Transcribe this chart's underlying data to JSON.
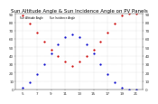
{
  "title": "Sun Altitude Angle & Sun Incidence Angle on PV Panels",
  "xlabel": "",
  "ylabel": "",
  "background_color": "#ffffff",
  "plot_bg_color": "#ffffff",
  "grid_color": "#aaaaaa",
  "blue_color": "#0000cc",
  "red_color": "#cc0000",
  "ylim": [
    0,
    90
  ],
  "xlim": [
    4,
    22
  ],
  "xticks": [
    5,
    7,
    9,
    11,
    13,
    15,
    17,
    19,
    21
  ],
  "yticks_left": [
    0,
    10,
    20,
    30,
    40,
    50,
    60,
    70,
    80,
    90
  ],
  "yticks_right": [
    0,
    10,
    20,
    30,
    40,
    50,
    60,
    70,
    80,
    90
  ],
  "hours": [
    5,
    6,
    7,
    8,
    9,
    10,
    11,
    12,
    13,
    14,
    15,
    16,
    17,
    18,
    19,
    20,
    21
  ],
  "sun_altitude": [
    2,
    8,
    18,
    30,
    43,
    54,
    62,
    65,
    62,
    54,
    43,
    30,
    18,
    8,
    2,
    0,
    0
  ],
  "sun_incidence": [
    88,
    78,
    68,
    57,
    47,
    40,
    33,
    28,
    33,
    40,
    47,
    57,
    68,
    78,
    88,
    90,
    90
  ],
  "legend_blue": "Sun Altitude Angle",
  "legend_red": "Sun Incidence Angle",
  "title_fontsize": 4,
  "tick_fontsize": 3,
  "marker_size": 1.2
}
